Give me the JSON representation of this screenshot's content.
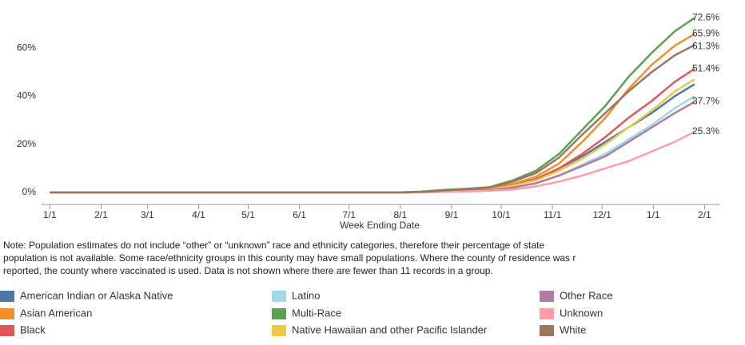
{
  "chart_data": {
    "type": "line",
    "x_label": "Week Ending Date",
    "x": [
      0,
      210,
      224,
      238,
      252,
      266,
      280,
      294,
      308,
      322,
      336,
      350,
      364,
      378,
      390
    ],
    "xlim": [
      -5,
      405
    ],
    "xticks": [
      {
        "value": 0,
        "label": "1/1"
      },
      {
        "value": 31,
        "label": "2/1"
      },
      {
        "value": 59,
        "label": "3/1"
      },
      {
        "value": 90,
        "label": "4/1"
      },
      {
        "value": 120,
        "label": "5/1"
      },
      {
        "value": 151,
        "label": "6/1"
      },
      {
        "value": 181,
        "label": "7/1"
      },
      {
        "value": 212,
        "label": "8/1"
      },
      {
        "value": 243,
        "label": "9/1"
      },
      {
        "value": 273,
        "label": "10/1"
      },
      {
        "value": 304,
        "label": "11/1"
      },
      {
        "value": 334,
        "label": "12/1"
      },
      {
        "value": 365,
        "label": "1/1"
      },
      {
        "value": 396,
        "label": "2/1"
      }
    ],
    "ylim": [
      -5,
      80
    ],
    "yticks": [
      {
        "value": 0,
        "label": "0%"
      },
      {
        "value": 20,
        "label": "20%"
      },
      {
        "value": 40,
        "label": "40%"
      },
      {
        "value": 60,
        "label": "60%"
      }
    ],
    "grid": false,
    "series": [
      {
        "name": "American Indian or Alaska Native",
        "color": "#4e79a7",
        "values": [
          0,
          0,
          0.1,
          0.5,
          0.9,
          1.4,
          3,
          5.5,
          10,
          15,
          21,
          27,
          33,
          40,
          45
        ]
      },
      {
        "name": "Asian American",
        "color": "#f28e2b",
        "values": [
          0,
          0,
          0.2,
          0.8,
          1.2,
          1.8,
          3.5,
          6.5,
          12,
          21,
          31,
          43,
          53,
          61,
          65.9
        ],
        "value_labels": [
          null,
          null,
          null,
          null,
          null,
          null,
          null,
          null,
          null,
          null,
          null,
          null,
          null,
          null,
          "65.9%"
        ]
      },
      {
        "name": "Black",
        "color": "#e15759",
        "values": [
          0,
          0,
          0.1,
          0.5,
          0.9,
          1.4,
          3,
          5.5,
          10,
          16,
          23,
          31,
          38,
          46,
          51.4
        ],
        "value_labels": [
          null,
          null,
          null,
          null,
          null,
          null,
          null,
          null,
          null,
          null,
          null,
          null,
          null,
          null,
          "51.4%"
        ]
      },
      {
        "name": "Latino",
        "color": "#9fd8e6",
        "values": [
          0,
          0,
          0.1,
          0.3,
          0.6,
          1,
          2,
          3.8,
          7,
          11.5,
          16,
          22,
          28,
          35,
          40
        ]
      },
      {
        "name": "Multi-Race",
        "color": "#59a14f",
        "values": [
          0,
          0,
          0.3,
          1,
          1.5,
          2.2,
          5,
          9,
          16,
          26,
          36,
          48,
          58,
          67,
          72.6
        ],
        "value_labels": [
          null,
          null,
          null,
          null,
          null,
          null,
          null,
          null,
          null,
          null,
          null,
          null,
          null,
          null,
          "72.6%"
        ]
      },
      {
        "name": "Native Hawaiian and other Pacific Islander",
        "color": "#edc948",
        "values": [
          0,
          0,
          0.1,
          0.4,
          0.8,
          1.3,
          2.8,
          5,
          9,
          14,
          20,
          27,
          34,
          42,
          47
        ]
      },
      {
        "name": "Other Race",
        "color": "#b07aa1",
        "values": [
          0,
          0,
          0.1,
          0.3,
          0.6,
          1,
          2,
          3.8,
          7,
          11,
          15,
          21,
          27,
          33,
          37.7
        ],
        "value_labels": [
          null,
          null,
          null,
          null,
          null,
          null,
          null,
          null,
          null,
          null,
          null,
          null,
          null,
          null,
          "37.7%"
        ]
      },
      {
        "name": "Unknown",
        "color": "#ff9da7",
        "values": [
          0,
          0,
          0,
          0.2,
          0.4,
          0.7,
          1.2,
          2.5,
          4.5,
          7,
          10,
          13,
          17,
          21,
          25.3
        ],
        "value_labels": [
          null,
          null,
          null,
          null,
          null,
          null,
          null,
          null,
          null,
          null,
          null,
          null,
          null,
          null,
          "25.3%"
        ]
      },
      {
        "name": "White",
        "color": "#9c755f",
        "values": [
          0,
          0,
          0.2,
          0.8,
          1.3,
          2,
          4.5,
          8,
          14.5,
          24,
          33,
          42,
          50,
          57,
          61.3
        ],
        "value_labels": [
          null,
          null,
          null,
          null,
          null,
          null,
          null,
          null,
          null,
          null,
          null,
          null,
          null,
          null,
          "61.3%"
        ]
      }
    ],
    "note": [
      "Note: Population estimates do not include “other” or “unknown” race and ethnicity categories, therefore their percentage of state",
      "population is not available. Some race/ethnicity groups in this county may have small populations. Where the county of residence was r",
      "reported, the county where vaccinated is used. Data is not shown where there are fewer than 11 records in a group."
    ]
  }
}
